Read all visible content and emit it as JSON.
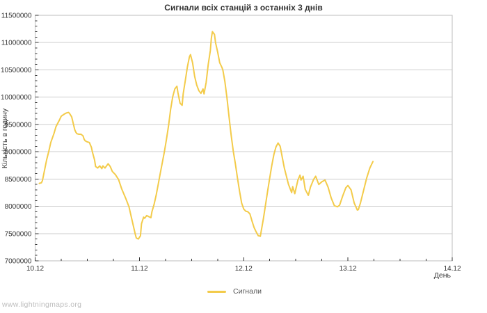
{
  "page": {
    "footer": "www.lightningmaps.org"
  },
  "chart_data": {
    "type": "line",
    "title": "Сигнали всіх станцій з останніх 3 днів",
    "xlabel": "День",
    "ylabel": "Кількість в годину",
    "grid": "horizontal",
    "legend": {
      "position": "bottom",
      "entries": [
        {
          "label": "Сигнали"
        }
      ]
    },
    "colors": {
      "line": "#f3cb4a",
      "grid": "#cccccc",
      "frame": "#bdbdbd",
      "tick": "#333333",
      "text": "#333333"
    },
    "xlim": [
      0,
      4
    ],
    "ylim": [
      7000000,
      11500000
    ],
    "x_minor_step": 0.25,
    "y_major_step": 500000,
    "y_minor_step": 100000,
    "x_ticks": [
      {
        "pos": 0,
        "label": "10.12"
      },
      {
        "pos": 1,
        "label": "11.12"
      },
      {
        "pos": 2,
        "label": "12.12"
      },
      {
        "pos": 3,
        "label": "13.12"
      },
      {
        "pos": 4,
        "label": "14.12"
      }
    ],
    "y_ticks": [
      {
        "value": 7000000,
        "label": "7000000"
      },
      {
        "value": 7500000,
        "label": "7500000"
      },
      {
        "value": 8000000,
        "label": "8000000"
      },
      {
        "value": 8500000,
        "label": "8500000"
      },
      {
        "value": 9000000,
        "label": "9000000"
      },
      {
        "value": 9500000,
        "label": "9500000"
      },
      {
        "value": 10000000,
        "label": "10000000"
      },
      {
        "value": 10500000,
        "label": "10500000"
      },
      {
        "value": 11000000,
        "label": "11000000"
      },
      {
        "value": 11500000,
        "label": "11500000"
      }
    ],
    "series": [
      {
        "id": "signals",
        "name": "Сигнали",
        "color": "#f3cb4a",
        "points": [
          [
            0.04,
            8420000
          ],
          [
            0.06,
            8430000
          ],
          [
            0.07,
            8470000
          ],
          [
            0.09,
            8660000
          ],
          [
            0.11,
            8850000
          ],
          [
            0.13,
            9000000
          ],
          [
            0.15,
            9170000
          ],
          [
            0.18,
            9330000
          ],
          [
            0.2,
            9460000
          ],
          [
            0.23,
            9570000
          ],
          [
            0.25,
            9650000
          ],
          [
            0.28,
            9690000
          ],
          [
            0.3,
            9710000
          ],
          [
            0.32,
            9720000
          ],
          [
            0.33,
            9700000
          ],
          [
            0.35,
            9640000
          ],
          [
            0.37,
            9480000
          ],
          [
            0.38,
            9400000
          ],
          [
            0.39,
            9360000
          ],
          [
            0.4,
            9330000
          ],
          [
            0.42,
            9320000
          ],
          [
            0.44,
            9320000
          ],
          [
            0.46,
            9290000
          ],
          [
            0.47,
            9230000
          ],
          [
            0.48,
            9200000
          ],
          [
            0.5,
            9180000
          ],
          [
            0.52,
            9170000
          ],
          [
            0.54,
            9080000
          ],
          [
            0.55,
            8990000
          ],
          [
            0.57,
            8850000
          ],
          [
            0.58,
            8730000
          ],
          [
            0.6,
            8700000
          ],
          [
            0.62,
            8740000
          ],
          [
            0.64,
            8690000
          ],
          [
            0.65,
            8740000
          ],
          [
            0.67,
            8700000
          ],
          [
            0.7,
            8780000
          ],
          [
            0.72,
            8730000
          ],
          [
            0.74,
            8640000
          ],
          [
            0.77,
            8580000
          ],
          [
            0.8,
            8490000
          ],
          [
            0.83,
            8320000
          ],
          [
            0.87,
            8140000
          ],
          [
            0.9,
            7990000
          ],
          [
            0.93,
            7740000
          ],
          [
            0.96,
            7490000
          ],
          [
            0.97,
            7420000
          ],
          [
            0.99,
            7400000
          ],
          [
            1.01,
            7460000
          ],
          [
            1.02,
            7680000
          ],
          [
            1.04,
            7800000
          ],
          [
            1.05,
            7780000
          ],
          [
            1.07,
            7830000
          ],
          [
            1.09,
            7810000
          ],
          [
            1.11,
            7790000
          ],
          [
            1.12,
            7900000
          ],
          [
            1.14,
            8030000
          ],
          [
            1.16,
            8200000
          ],
          [
            1.18,
            8400000
          ],
          [
            1.2,
            8600000
          ],
          [
            1.22,
            8800000
          ],
          [
            1.24,
            9000000
          ],
          [
            1.26,
            9230000
          ],
          [
            1.28,
            9480000
          ],
          [
            1.3,
            9780000
          ],
          [
            1.32,
            10010000
          ],
          [
            1.34,
            10150000
          ],
          [
            1.36,
            10200000
          ],
          [
            1.37,
            10080000
          ],
          [
            1.39,
            9890000
          ],
          [
            1.41,
            9850000
          ],
          [
            1.42,
            10060000
          ],
          [
            1.44,
            10300000
          ],
          [
            1.46,
            10550000
          ],
          [
            1.48,
            10740000
          ],
          [
            1.49,
            10780000
          ],
          [
            1.51,
            10630000
          ],
          [
            1.53,
            10380000
          ],
          [
            1.55,
            10220000
          ],
          [
            1.57,
            10120000
          ],
          [
            1.59,
            10070000
          ],
          [
            1.61,
            10150000
          ],
          [
            1.62,
            10060000
          ],
          [
            1.64,
            10270000
          ],
          [
            1.66,
            10600000
          ],
          [
            1.68,
            10850000
          ],
          [
            1.69,
            11080000
          ],
          [
            1.7,
            11200000
          ],
          [
            1.72,
            11150000
          ],
          [
            1.73,
            11000000
          ],
          [
            1.75,
            10830000
          ],
          [
            1.77,
            10630000
          ],
          [
            1.79,
            10550000
          ],
          [
            1.8,
            10500000
          ],
          [
            1.82,
            10280000
          ],
          [
            1.84,
            9980000
          ],
          [
            1.86,
            9630000
          ],
          [
            1.88,
            9300000
          ],
          [
            1.9,
            9010000
          ],
          [
            1.92,
            8780000
          ],
          [
            1.94,
            8520000
          ],
          [
            1.96,
            8280000
          ],
          [
            1.98,
            8060000
          ],
          [
            2.0,
            7950000
          ],
          [
            2.02,
            7910000
          ],
          [
            2.04,
            7900000
          ],
          [
            2.06,
            7860000
          ],
          [
            2.08,
            7730000
          ],
          [
            2.1,
            7610000
          ],
          [
            2.12,
            7530000
          ],
          [
            2.14,
            7460000
          ],
          [
            2.16,
            7450000
          ],
          [
            2.17,
            7560000
          ],
          [
            2.19,
            7780000
          ],
          [
            2.21,
            8030000
          ],
          [
            2.23,
            8280000
          ],
          [
            2.25,
            8520000
          ],
          [
            2.27,
            8750000
          ],
          [
            2.29,
            8950000
          ],
          [
            2.31,
            9090000
          ],
          [
            2.33,
            9160000
          ],
          [
            2.35,
            9100000
          ],
          [
            2.37,
            8900000
          ],
          [
            2.39,
            8700000
          ],
          [
            2.41,
            8550000
          ],
          [
            2.43,
            8400000
          ],
          [
            2.46,
            8250000
          ],
          [
            2.47,
            8360000
          ],
          [
            2.49,
            8230000
          ],
          [
            2.52,
            8480000
          ],
          [
            2.54,
            8570000
          ],
          [
            2.55,
            8480000
          ],
          [
            2.57,
            8550000
          ],
          [
            2.59,
            8310000
          ],
          [
            2.62,
            8200000
          ],
          [
            2.64,
            8350000
          ],
          [
            2.67,
            8490000
          ],
          [
            2.69,
            8550000
          ],
          [
            2.72,
            8400000
          ],
          [
            2.75,
            8450000
          ],
          [
            2.78,
            8480000
          ],
          [
            2.81,
            8350000
          ],
          [
            2.84,
            8150000
          ],
          [
            2.87,
            8010000
          ],
          [
            2.9,
            7990000
          ],
          [
            2.92,
            8020000
          ],
          [
            2.95,
            8190000
          ],
          [
            2.98,
            8340000
          ],
          [
            3.0,
            8380000
          ],
          [
            3.03,
            8300000
          ],
          [
            3.06,
            8060000
          ],
          [
            3.09,
            7930000
          ],
          [
            3.1,
            7940000
          ],
          [
            3.12,
            8060000
          ],
          [
            3.15,
            8290000
          ],
          [
            3.18,
            8520000
          ],
          [
            3.21,
            8700000
          ],
          [
            3.24,
            8820000
          ]
        ]
      }
    ]
  }
}
